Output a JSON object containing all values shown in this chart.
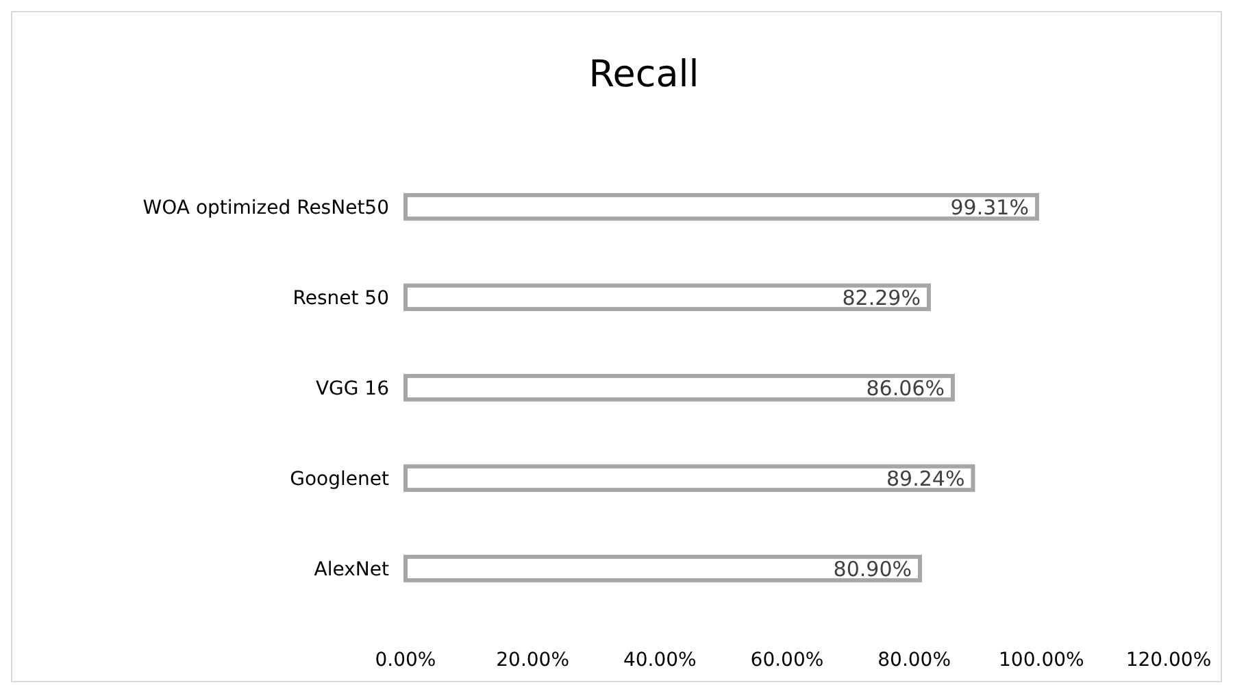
{
  "chart_data": {
    "type": "bar",
    "orientation": "horizontal",
    "title": "Recall",
    "categories": [
      "WOA optimized ResNet50",
      "Resnet 50",
      "VGG 16",
      "Googlenet",
      "AlexNet"
    ],
    "values": [
      99.31,
      82.29,
      86.06,
      89.24,
      80.9
    ],
    "value_labels": [
      "99.31%",
      "82.29%",
      "86.06%",
      "89.24%",
      "80.90%"
    ],
    "color": "#a6a6a6",
    "xlim": [
      0,
      120
    ],
    "xticks": [
      {
        "value": 0,
        "label": "0.00%"
      },
      {
        "value": 20,
        "label": "20.00%"
      },
      {
        "value": 40,
        "label": "40.00%"
      },
      {
        "value": 60,
        "label": "60.00%"
      },
      {
        "value": 80,
        "label": "80.00%"
      },
      {
        "value": 100,
        "label": "100.00%"
      },
      {
        "value": 120,
        "label": "120.00%"
      }
    ],
    "grid": false
  }
}
